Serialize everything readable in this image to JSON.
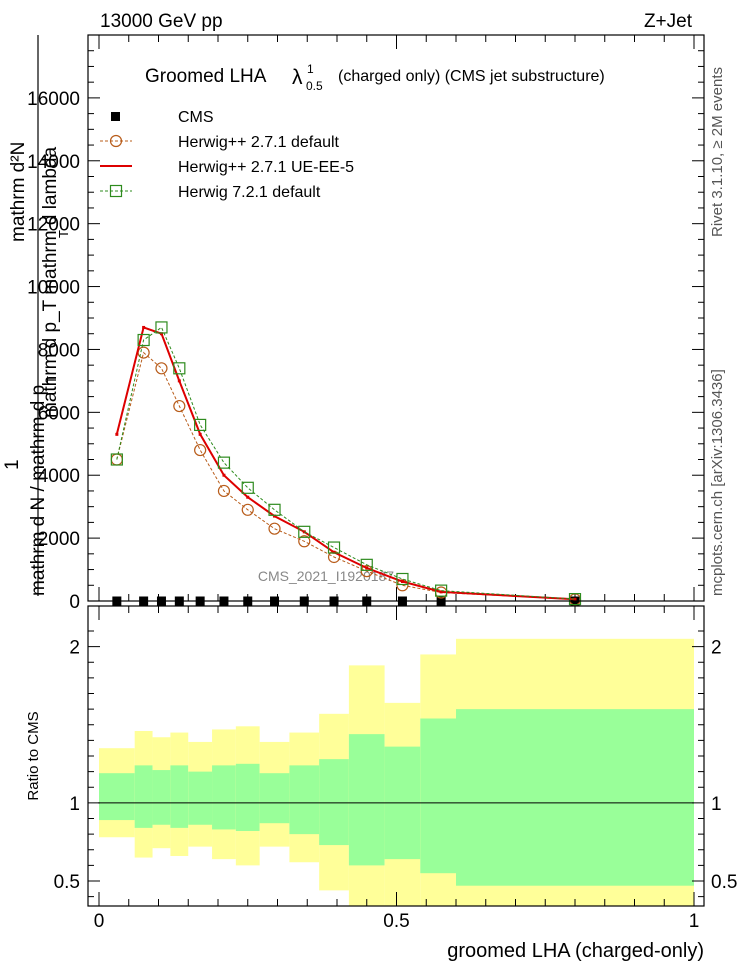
{
  "header": {
    "energy_label": "13000 GeV pp",
    "process_label": "Z+Jet"
  },
  "side_labels": {
    "rivet": "Rivet 3.1.10, ≥ 2M events",
    "mcplots": "mcplots.cern.ch [arXiv:1306.3436]"
  },
  "colors": {
    "cms": "#000000",
    "herwigpp_default": "#b85c1a",
    "herwigpp_ueee5": "#dd0000",
    "herwig7": "#2e8b1e",
    "band_outer": "#ffff99",
    "band_inner": "#99ff99"
  },
  "chart_data": [
    {
      "type": "line",
      "title": "Groomed LHA",
      "title_symbol": "λ",
      "title_symbol_sup": "1",
      "title_symbol_sub": "0.5",
      "title_suffix": "(charged only) (CMS jet substructure)",
      "watermark": "CMS_2021_I1920187",
      "ylabel_top": "mathrm d²N",
      "ylabel_top_denominator": "mathrm d p_T mathrm d lambda",
      "ylabel_top_denominator_sub": "T",
      "ylabel_bottom_one": "1",
      "ylabel_bottom_num": "mathrm d N / mathrm d p",
      "ylabel_bottom_num_sub": "T",
      "xlim": [
        0,
        1
      ],
      "ylim": [
        0,
        18000
      ],
      "yticks": [
        0,
        2000,
        4000,
        6000,
        8000,
        10000,
        12000,
        14000,
        16000
      ],
      "ytick_labels": [
        "0",
        "2000",
        "4000",
        "6000",
        "8000",
        "10000",
        "12000",
        "14000",
        "16000"
      ],
      "legend_position": "top-left",
      "series": [
        {
          "name": "CMS",
          "marker": "filled-square",
          "x": [
            0.03,
            0.075,
            0.105,
            0.135,
            0.17,
            0.21,
            0.25,
            0.295,
            0.345,
            0.395,
            0.45,
            0.51,
            0.575,
            0.8
          ],
          "y": [
            0,
            0,
            0,
            0,
            0,
            0,
            0,
            0,
            0,
            0,
            0,
            0,
            0,
            0
          ]
        },
        {
          "name": "Herwig++ 2.7.1 default",
          "marker": "open-circle",
          "x": [
            0.03,
            0.075,
            0.105,
            0.135,
            0.17,
            0.21,
            0.25,
            0.295,
            0.345,
            0.395,
            0.45,
            0.51,
            0.575,
            0.8
          ],
          "y": [
            4500,
            7900,
            7400,
            6200,
            4800,
            3500,
            2900,
            2300,
            1900,
            1400,
            950,
            500,
            270,
            50
          ]
        },
        {
          "name": "Herwig++ 2.7.1 UE-EE-5",
          "marker": "line",
          "x": [
            0.03,
            0.075,
            0.105,
            0.135,
            0.17,
            0.21,
            0.25,
            0.295,
            0.345,
            0.395,
            0.45,
            0.51,
            0.575,
            0.8
          ],
          "y": [
            5300,
            8700,
            8500,
            7000,
            5300,
            4000,
            3300,
            2700,
            2200,
            1550,
            1050,
            620,
            290,
            55
          ]
        },
        {
          "name": "Herwig 7.2.1 default",
          "marker": "open-square",
          "x": [
            0.03,
            0.075,
            0.105,
            0.135,
            0.17,
            0.21,
            0.25,
            0.295,
            0.345,
            0.395,
            0.45,
            0.51,
            0.575,
            0.8
          ],
          "y": [
            4500,
            8300,
            8700,
            7400,
            5600,
            4400,
            3600,
            2900,
            2200,
            1700,
            1150,
            700,
            330,
            60
          ]
        }
      ]
    },
    {
      "type": "area",
      "ylabel": "Ratio to CMS",
      "xlabel": "groomed LHA (charged-only)",
      "xlim": [
        0,
        1
      ],
      "ylim": [
        0.34,
        2.26
      ],
      "xticks": [
        0,
        0.5,
        1
      ],
      "xtick_labels": [
        "0",
        "0.5",
        "1"
      ],
      "yticks": [
        0.5,
        1,
        2
      ],
      "ytick_labels": [
        "0.5",
        "1",
        "2"
      ],
      "reference_line": 1,
      "bands": {
        "bin_edges": [
          0,
          0.06,
          0.09,
          0.12,
          0.15,
          0.19,
          0.23,
          0.27,
          0.32,
          0.37,
          0.42,
          0.48,
          0.54,
          0.6,
          1.0
        ],
        "outer_up": [
          1.35,
          1.46,
          1.42,
          1.45,
          1.39,
          1.47,
          1.49,
          1.39,
          1.45,
          1.57,
          1.88,
          1.64,
          1.95,
          2.05
        ],
        "outer_down": [
          0.78,
          0.65,
          0.71,
          0.66,
          0.72,
          0.64,
          0.6,
          0.72,
          0.62,
          0.44,
          0.27,
          0.29,
          0.22,
          0.13
        ],
        "inner_up": [
          1.19,
          1.24,
          1.21,
          1.24,
          1.2,
          1.24,
          1.25,
          1.19,
          1.24,
          1.28,
          1.44,
          1.36,
          1.54,
          1.6
        ],
        "inner_down": [
          0.89,
          0.84,
          0.86,
          0.84,
          0.86,
          0.83,
          0.82,
          0.87,
          0.8,
          0.73,
          0.6,
          0.64,
          0.55,
          0.47
        ]
      }
    }
  ]
}
